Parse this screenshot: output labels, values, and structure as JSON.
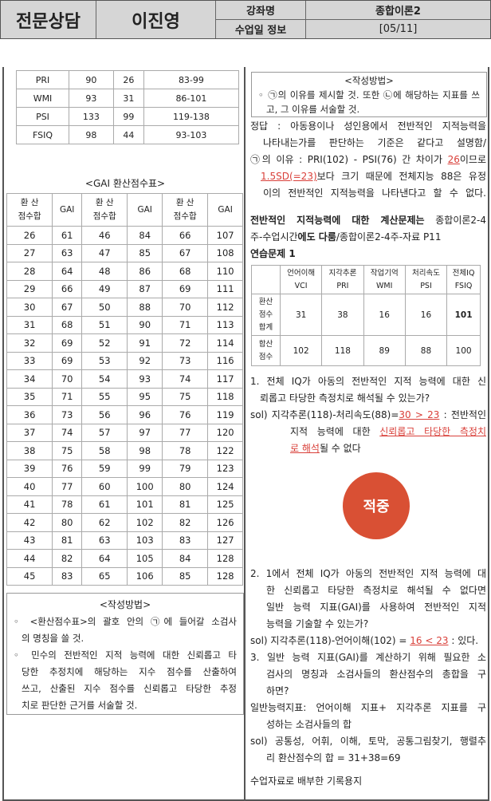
{
  "header": {
    "subject": "전문상담",
    "instructor": "이진영",
    "course_label": "강좌명",
    "course_value": "종합이론2",
    "date_label": "수업일 정보",
    "date_value": "[05/11]"
  },
  "top_table": [
    [
      "PRI",
      "90",
      "26",
      "83-99"
    ],
    [
      "WMI",
      "93",
      "31",
      "86-101"
    ],
    [
      "PSI",
      "133",
      "99",
      "119-138"
    ],
    [
      "FSIQ",
      "98",
      "44",
      "93-103"
    ]
  ],
  "gai_table": {
    "title": "<GAI 환산점수표>",
    "headers": [
      "환 산\n점수합",
      "GAI",
      "환 산\n점수합",
      "GAI",
      "환 산\n점수합",
      "GAI"
    ],
    "rows": [
      [
        "26",
        "61",
        "46",
        "84",
        "66",
        "107"
      ],
      [
        "27",
        "63",
        "47",
        "85",
        "67",
        "108"
      ],
      [
        "28",
        "64",
        "48",
        "86",
        "68",
        "110"
      ],
      [
        "29",
        "66",
        "49",
        "87",
        "69",
        "111"
      ],
      [
        "30",
        "67",
        "50",
        "88",
        "70",
        "112"
      ],
      [
        "31",
        "68",
        "51",
        "90",
        "71",
        "113"
      ],
      [
        "32",
        "69",
        "52",
        "91",
        "72",
        "114"
      ],
      [
        "33",
        "69",
        "53",
        "92",
        "73",
        "116"
      ],
      [
        "34",
        "70",
        "54",
        "93",
        "74",
        "117"
      ],
      [
        "35",
        "71",
        "55",
        "95",
        "75",
        "118"
      ],
      [
        "36",
        "73",
        "56",
        "96",
        "76",
        "119"
      ],
      [
        "37",
        "74",
        "57",
        "97",
        "77",
        "120"
      ],
      [
        "38",
        "75",
        "58",
        "98",
        "78",
        "122"
      ],
      [
        "39",
        "76",
        "59",
        "99",
        "79",
        "123"
      ],
      [
        "40",
        "77",
        "60",
        "100",
        "80",
        "124"
      ],
      [
        "41",
        "78",
        "61",
        "101",
        "81",
        "125"
      ],
      [
        "42",
        "80",
        "62",
        "102",
        "82",
        "126"
      ],
      [
        "43",
        "81",
        "63",
        "103",
        "83",
        "127"
      ],
      [
        "44",
        "82",
        "64",
        "105",
        "84",
        "128"
      ],
      [
        "45",
        "83",
        "65",
        "106",
        "85",
        "128"
      ]
    ]
  },
  "left_method": {
    "title": "<작성방법>",
    "lines": [
      "◦ <환산점수표>의 괄호 안의 ㉠에 들어갈 소검사",
      "의 명칭을 쓸 것.",
      "◦ 민수의 전반적인 지적 능력에 대한 신뢰롭고 타",
      "당한 추정치에 해당하는 지수 점수를 산출하여",
      "쓰고, 산출된 지수 점수를 신뢰롭고 타당한 추정",
      "치로 판단한 근거를 서술할 것."
    ]
  },
  "right_method": {
    "title": "<작성방법>",
    "lines": [
      "◦ ㉠의 이유를 제시할 것. 또한 ㉡에 해당하는 지표를 쓰",
      "고, 그 이유를 서술할 것."
    ]
  },
  "answer": {
    "l1": "정답 : 아동용이나 성인용에서 전반적인 지적능력을",
    "l2": "나타내는가를 판단하는 기준은 같다고 설명함/",
    "l3a": "㉠의 이유 : PRI(102) - PSI(76) 간 차이가 ",
    "l3b": "26",
    "l3c": "이므로",
    "l4a": "1.5SD(=23)",
    "l4b": "보다 크기 때문에 전체지능 88은 유정",
    "l5": "이의 전반적인 지적능력을 나타낸다고 할 수 없다."
  },
  "calc": {
    "a": "전반적인 지적능력에 대한 계산문제는",
    "b": " 종합이론2-4",
    "c": "주-수업시간",
    "d": "에도 다룸",
    "e": "/종합이론2-4주-자료 P11",
    "f": "연습문제 1"
  },
  "exercise": {
    "headers": [
      [
        "언어이해",
        "VCI"
      ],
      [
        "지각추론",
        "PRI"
      ],
      [
        "작업기억",
        "WMI"
      ],
      [
        "처리속도",
        "PSI"
      ],
      [
        "전체IQ",
        "FSIQ"
      ]
    ],
    "rows": [
      {
        "label": [
          "환산",
          "점수",
          "합계"
        ],
        "values": [
          "31",
          "38",
          "16",
          "16",
          "101"
        ]
      },
      {
        "label": [
          "합산",
          "점수"
        ],
        "values": [
          "102",
          "118",
          "89",
          "88",
          "100"
        ]
      }
    ]
  },
  "q1": {
    "l1": "1. 전체 IQ가 아동의 전반적인 지적 능력에 대한 신",
    "l2": "뢰롭고 타당한 측정치로 해석될 수 있는가?",
    "s1a": "sol) 지각추론(118)-처리속도(88)=",
    "s1b": "30 > 23",
    "s1c": " : 전반적인",
    "s2a": "지적 능력에 대한 ",
    "s2b": "신뢰롭고 타당한 측정치",
    "s3a": "로 해석",
    "s3b": "될 수 없다"
  },
  "q2": {
    "l1": "2. 1에서 전체 IQ가 아동의 전반적인 지적 능력에 대",
    "l2": "한 신뢰롭고 타당한 측정치로 해석될 수 없다면",
    "l3": "일반 능력 지표(GAI)를 사용하여 전반적인 지적",
    "l4": "능력을 기술할 수 있는가?",
    "sa": "sol) 지각추론(118)-언어이해(102) = ",
    "sb": "16 < 23",
    "sc": " : 있다."
  },
  "q3": {
    "l1": "3. 일반 능력 지표(GAI)를 계산하기 위해 필요한 소",
    "l2": "검사의 명칭과 소검사들의 환산점수의 총합을 구",
    "l3": "하면?",
    "g1": "일반능력지표: 언어이해 지표+ 지각추론 지표를 구",
    "g2": "성하는 소검사들의 합",
    "s1": "sol) 공통성, 어휘, 이해, 토막, 공통그림찾기, 행렬추",
    "s2": "리 환산점수의 합 = 31+38=69"
  },
  "footer_note": "수업자료로 배부한 기록용지",
  "badge": {
    "text": "적중",
    "color": "#d95034"
  }
}
